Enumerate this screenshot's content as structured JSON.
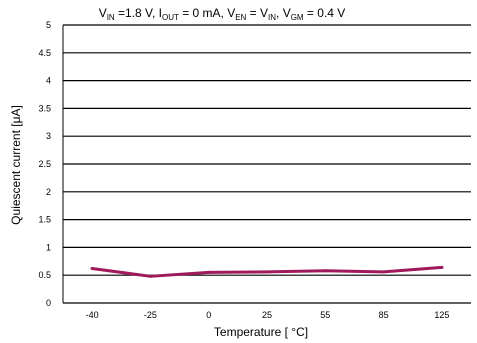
{
  "chart_data": {
    "type": "line",
    "title": {
      "parts": [
        {
          "t": "V"
        },
        {
          "t": "IN",
          "sub": true
        },
        {
          "t": " =1.8 V, I"
        },
        {
          "t": "OUT",
          "sub": true
        },
        {
          "t": " = 0 mA, V"
        },
        {
          "t": "EN",
          "sub": true
        },
        {
          "t": " = V"
        },
        {
          "t": "IN",
          "sub": true
        },
        {
          "t": ", V"
        },
        {
          "t": "GM",
          "sub": true
        },
        {
          "t": " = 0.4 V"
        }
      ]
    },
    "xlabel": "Temperature [ °C]",
    "ylabel": "Quiescent current [μA]",
    "categories": [
      "-40",
      "-25",
      "0",
      "25",
      "55",
      "85",
      "125"
    ],
    "ylim": [
      0,
      5
    ],
    "yticks": [
      "0",
      "0.5",
      "1",
      "1.5",
      "2",
      "2.5",
      "3",
      "3.5",
      "4",
      "4.5",
      "5"
    ],
    "grid": true,
    "series": [
      {
        "values": [
          0.62,
          0.48,
          0.55,
          0.56,
          0.58,
          0.56,
          0.64
        ],
        "color": "#a0195a"
      }
    ]
  }
}
